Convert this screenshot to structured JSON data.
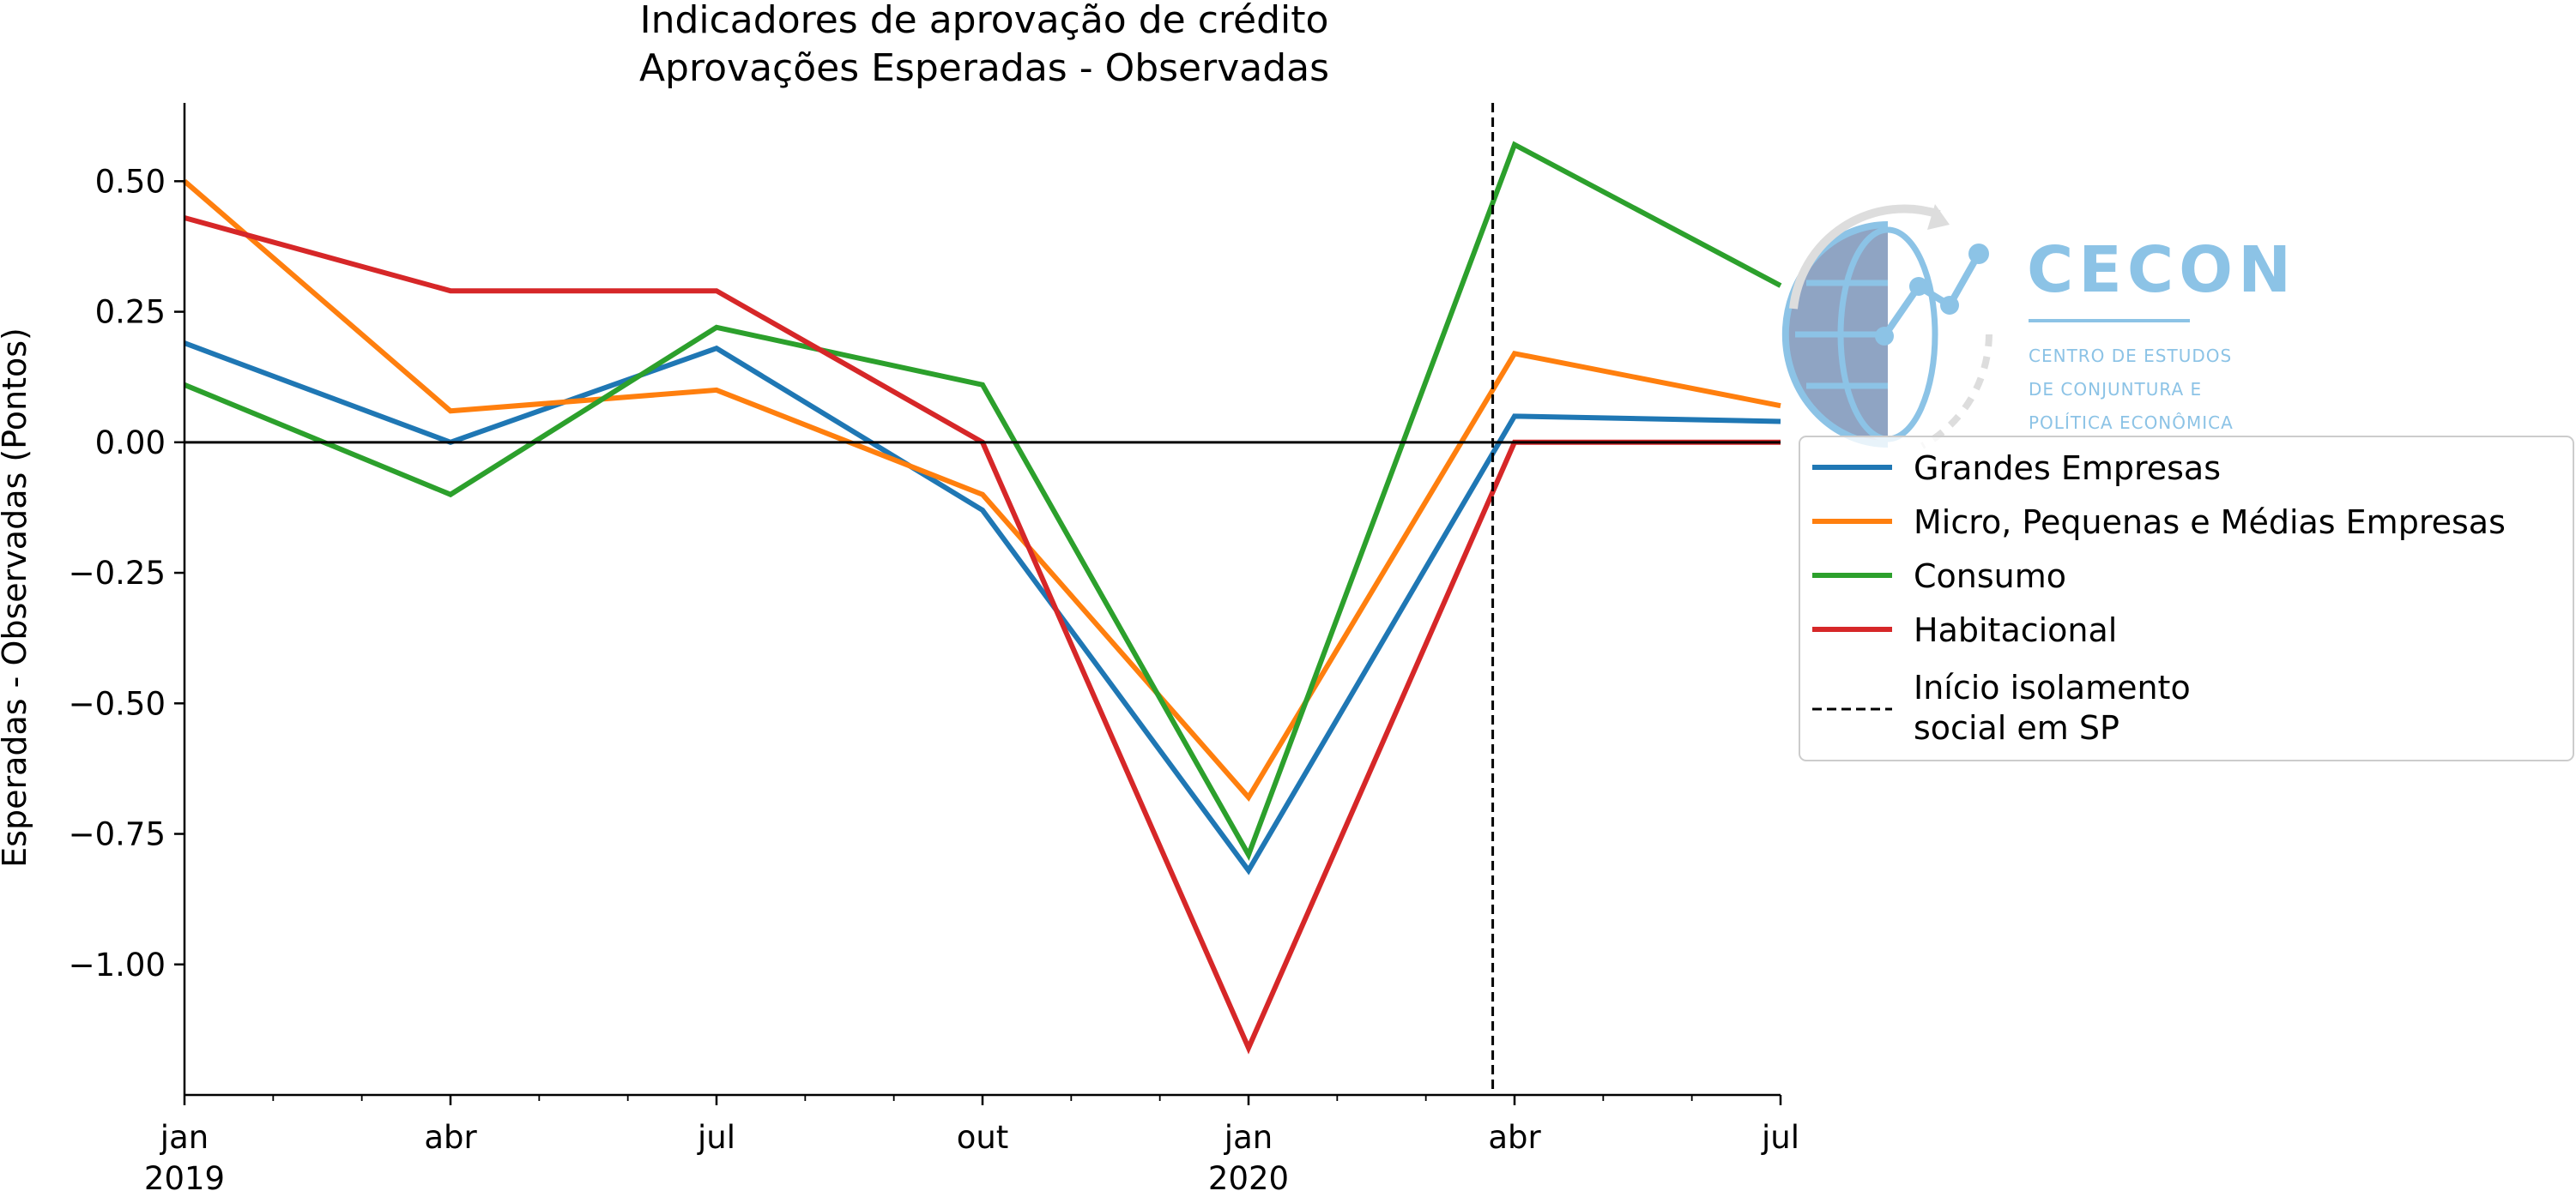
{
  "chart_data": {
    "type": "line",
    "title": "Indicadores de aprovação de crédito",
    "subtitle": "Aprovações Esperadas - Observadas",
    "xlabel": "",
    "ylabel": "Esperadas - Observadas (Pontos)",
    "x": [
      "2019-01",
      "2019-04",
      "2019-07",
      "2019-10",
      "2020-01",
      "2020-04",
      "2020-07"
    ],
    "x_tick_labels": [
      {
        "x": "2019-01",
        "line1": "jan",
        "line2": "2019"
      },
      {
        "x": "2019-04",
        "line1": "abr",
        "line2": ""
      },
      {
        "x": "2019-07",
        "line1": "jul",
        "line2": ""
      },
      {
        "x": "2019-10",
        "line1": "out",
        "line2": ""
      },
      {
        "x": "2020-01",
        "line1": "jan",
        "line2": "2020"
      },
      {
        "x": "2020-04",
        "line1": "abr",
        "line2": ""
      },
      {
        "x": "2020-07",
        "line1": "jul",
        "line2": ""
      }
    ],
    "ylim": [
      -1.25,
      0.65
    ],
    "y_ticks": [
      0.5,
      0.25,
      0.0,
      -0.25,
      -0.5,
      -0.75,
      -1.0
    ],
    "y_tick_labels": [
      "0.50",
      "0.25",
      "0.00",
      "−0.25",
      "−0.50",
      "−0.75",
      "−1.00"
    ],
    "series": [
      {
        "name": "Grandes Empresas",
        "color": "#1f77b4",
        "values": [
          0.19,
          0.0,
          0.18,
          -0.13,
          -0.82,
          0.05,
          0.04
        ]
      },
      {
        "name": "Micro, Pequenas e Médias Empresas",
        "color": "#ff7f0e",
        "values": [
          0.5,
          0.06,
          0.1,
          -0.1,
          -0.68,
          0.17,
          0.07
        ]
      },
      {
        "name": "Consumo",
        "color": "#2ca02c",
        "values": [
          0.11,
          -0.1,
          0.22,
          0.11,
          -0.79,
          0.57,
          0.3
        ]
      },
      {
        "name": "Habitacional",
        "color": "#d62728",
        "values": [
          0.43,
          0.29,
          0.29,
          0.0,
          -1.16,
          0.0,
          0.0
        ]
      }
    ],
    "vline": {
      "x": "2020-03-24",
      "style": "dashed",
      "color": "#000000",
      "label": "Início isolamento social em SP",
      "label_lines": [
        "Início isolamento",
        "social em SP"
      ]
    },
    "hline": {
      "y": 0.0,
      "color": "#000000"
    },
    "legend_position": "right",
    "grid": false
  },
  "logo": {
    "name": "CECON",
    "lines": [
      "CENTRO DE ESTUDOS",
      "DE CONJUNTURA E",
      "POLÍTICA ECONÔMICA"
    ],
    "color": "#8cc3e6"
  }
}
